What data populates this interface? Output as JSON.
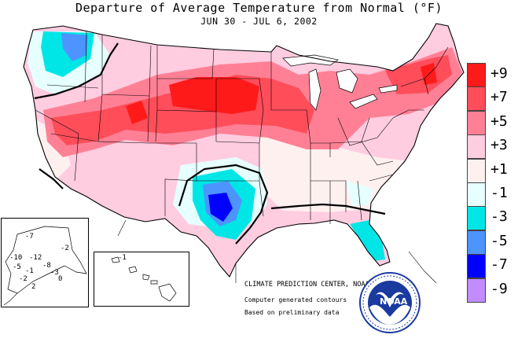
{
  "header": {
    "title": "Departure of Average Temperature from Normal (°F)",
    "dates": "JUN 30 - JUL  6, 2002"
  },
  "legend": [
    {
      "label": "+9",
      "color": "#ff1a1a"
    },
    {
      "label": "+7",
      "color": "#ff4d5a"
    },
    {
      "label": "+5",
      "color": "#ff8095"
    },
    {
      "label": "+3",
      "color": "#ffcce0"
    },
    {
      "label": "+1",
      "color": "#fff0f0"
    },
    {
      "label": "-1",
      "color": "#e6ffff"
    },
    {
      "label": "-3",
      "color": "#00e6e6"
    },
    {
      "label": "-5",
      "color": "#4d94ff"
    },
    {
      "label": "-7",
      "color": "#0000ff"
    },
    {
      "label": "-9",
      "color": "#c08cff"
    }
  ],
  "credits": {
    "center": "CLIMATE PREDICTION CENTER, NOAA",
    "line1": "Computer generated contours",
    "line2": "Based on preliminary data"
  },
  "alaska_labels": [
    "-7",
    "-10",
    "-12",
    "-8",
    "-5",
    "-1",
    "-3",
    "-2",
    "0",
    "2",
    "-2"
  ],
  "hawaii_label": "-1",
  "logo": {
    "text": "NOAA"
  }
}
